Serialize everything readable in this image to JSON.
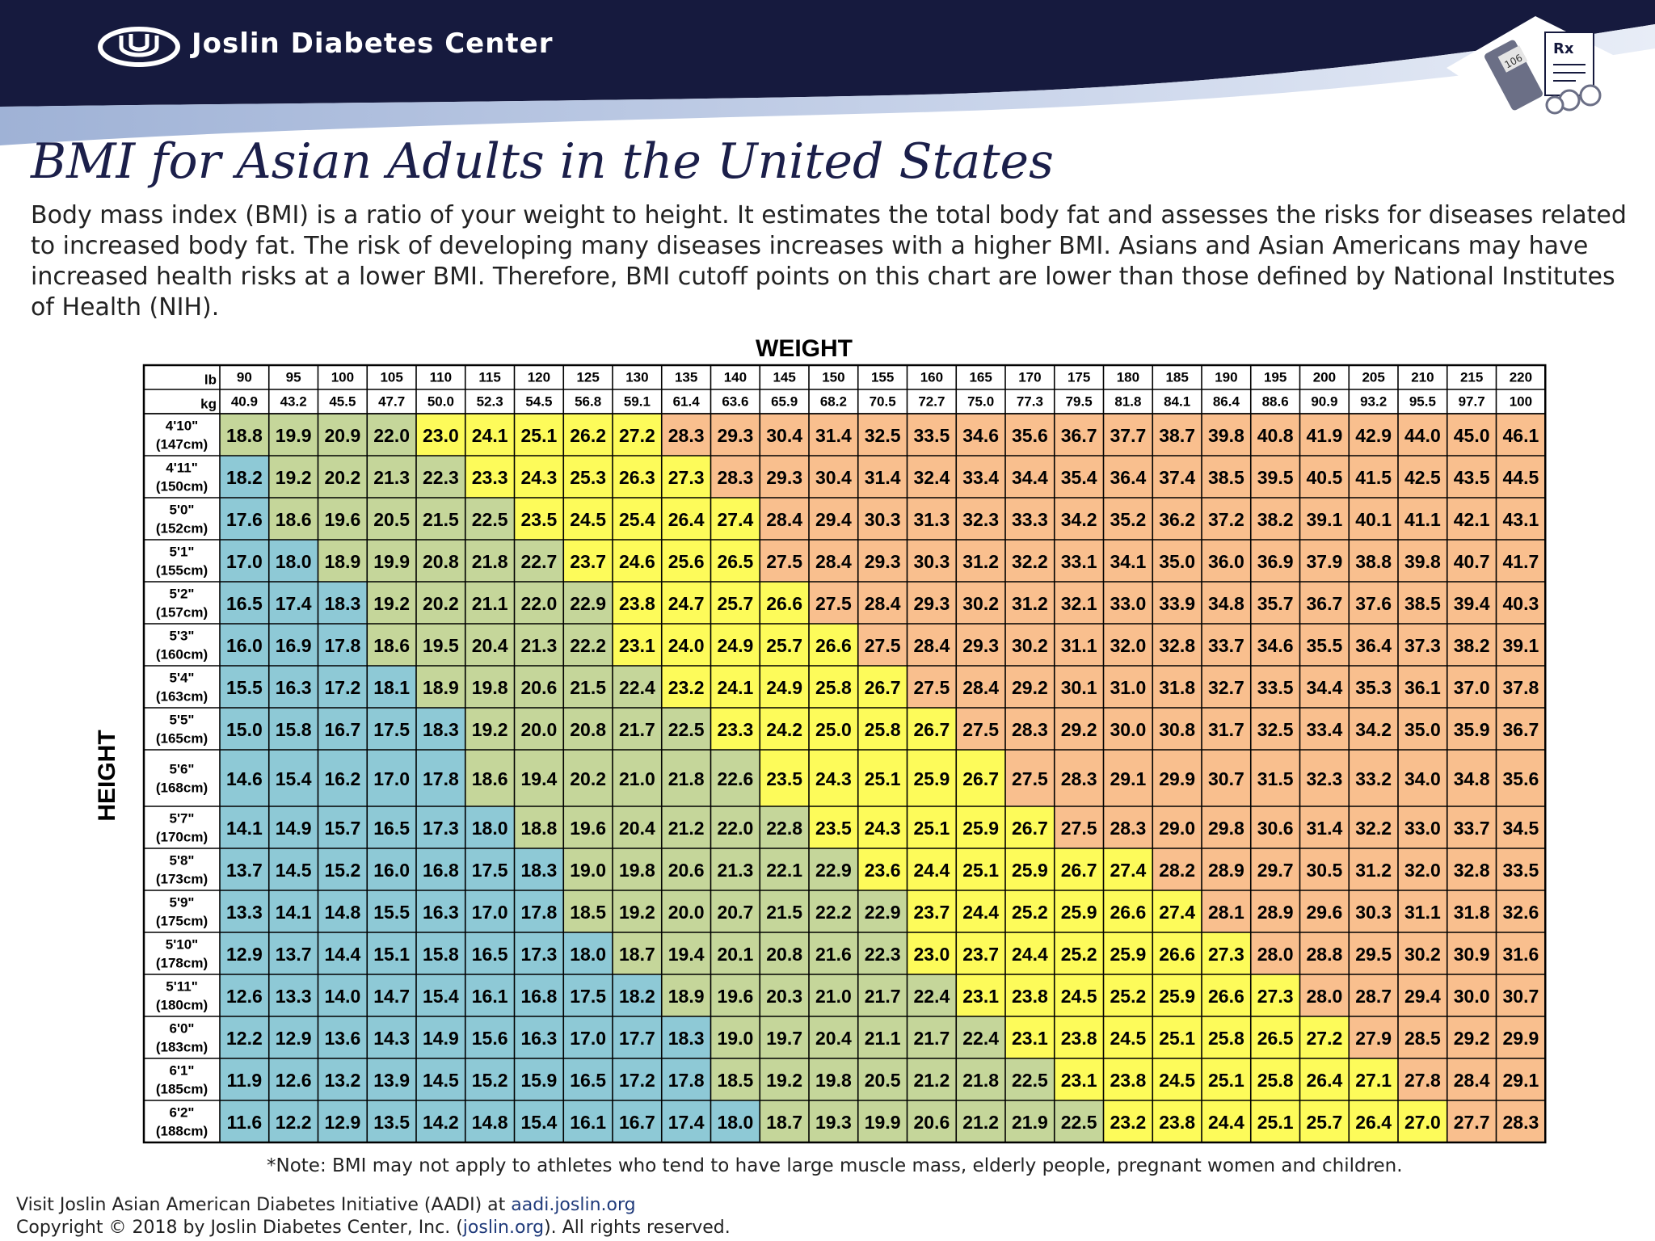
{
  "header": {
    "organization": "Joslin Diabetes Center",
    "device_label": "106",
    "rx_label": "Rx"
  },
  "title": "BMI for Asian Adults in the United States",
  "intro": "Body mass index (BMI) is a ratio of your weight to height. It estimates the total body fat and assesses the risks for diseases related to increased body fat. The risk of developing many diseases increases with a higher BMI. Asians and Asian Americans may have increased health risks at a lower BMI. Therefore, BMI cutoff points on this chart are lower than those defined by National Institutes of Health (NIH).",
  "colors": {
    "header_navy": "#161a3e",
    "underweight": "#8ec9d6",
    "healthy": "#c5d69a",
    "overweight": "#fdfb5a",
    "obese": "#f9bf8e"
  },
  "chart_data": {
    "type": "table",
    "x_title": "WEIGHT",
    "y_title": "HEIGHT",
    "unit_lb": "lb",
    "unit_kg": "kg",
    "weights_lb": [
      "90",
      "95",
      "100",
      "105",
      "110",
      "115",
      "120",
      "125",
      "130",
      "135",
      "140",
      "145",
      "150",
      "155",
      "160",
      "165",
      "170",
      "175",
      "180",
      "185",
      "190",
      "195",
      "200",
      "205",
      "210",
      "215",
      "220"
    ],
    "weights_kg": [
      "40.9",
      "43.2",
      "45.5",
      "47.7",
      "50.0",
      "52.3",
      "54.5",
      "56.8",
      "59.1",
      "61.4",
      "63.6",
      "65.9",
      "68.2",
      "70.5",
      "72.7",
      "75.0",
      "77.3",
      "79.5",
      "81.8",
      "84.1",
      "86.4",
      "88.6",
      "90.9",
      "93.2",
      "95.5",
      "97.7",
      "100"
    ],
    "heights_ft": [
      "4'10\"",
      "4'11\"",
      "5'0\"",
      "5'1\"",
      "5'2\"",
      "5'3\"",
      "5'4\"",
      "5'5\"",
      "5'6\"",
      "5'7\"",
      "5'8\"",
      "5'9\"",
      "5'10\"",
      "5'11\"",
      "6'0\"",
      "6'1\"",
      "6'2\""
    ],
    "heights_cm": [
      "(147cm)",
      "(150cm)",
      "(152cm)",
      "(155cm)",
      "(157cm)",
      "(160cm)",
      "(163cm)",
      "(165cm)",
      "(168cm)",
      "(170cm)",
      "(173cm)",
      "(175cm)",
      "(178cm)",
      "(180cm)",
      "(183cm)",
      "(185cm)",
      "(188cm)"
    ],
    "bmi": [
      [
        "18.8",
        "19.9",
        "20.9",
        "22.0",
        "23.0",
        "24.1",
        "25.1",
        "26.2",
        "27.2",
        "28.3",
        "29.3",
        "30.4",
        "31.4",
        "32.5",
        "33.5",
        "34.6",
        "35.6",
        "36.7",
        "37.7",
        "38.7",
        "39.8",
        "40.8",
        "41.9",
        "42.9",
        "44.0",
        "45.0",
        "46.1"
      ],
      [
        "18.2",
        "19.2",
        "20.2",
        "21.3",
        "22.3",
        "23.3",
        "24.3",
        "25.3",
        "26.3",
        "27.3",
        "28.3",
        "29.3",
        "30.4",
        "31.4",
        "32.4",
        "33.4",
        "34.4",
        "35.4",
        "36.4",
        "37.4",
        "38.5",
        "39.5",
        "40.5",
        "41.5",
        "42.5",
        "43.5",
        "44.5"
      ],
      [
        "17.6",
        "18.6",
        "19.6",
        "20.5",
        "21.5",
        "22.5",
        "23.5",
        "24.5",
        "25.4",
        "26.4",
        "27.4",
        "28.4",
        "29.4",
        "30.3",
        "31.3",
        "32.3",
        "33.3",
        "34.2",
        "35.2",
        "36.2",
        "37.2",
        "38.2",
        "39.1",
        "40.1",
        "41.1",
        "42.1",
        "43.1"
      ],
      [
        "17.0",
        "18.0",
        "18.9",
        "19.9",
        "20.8",
        "21.8",
        "22.7",
        "23.7",
        "24.6",
        "25.6",
        "26.5",
        "27.5",
        "28.4",
        "29.3",
        "30.3",
        "31.2",
        "32.2",
        "33.1",
        "34.1",
        "35.0",
        "36.0",
        "36.9",
        "37.9",
        "38.8",
        "39.8",
        "40.7",
        "41.7"
      ],
      [
        "16.5",
        "17.4",
        "18.3",
        "19.2",
        "20.2",
        "21.1",
        "22.0",
        "22.9",
        "23.8",
        "24.7",
        "25.7",
        "26.6",
        "27.5",
        "28.4",
        "29.3",
        "30.2",
        "31.2",
        "32.1",
        "33.0",
        "33.9",
        "34.8",
        "35.7",
        "36.7",
        "37.6",
        "38.5",
        "39.4",
        "40.3"
      ],
      [
        "16.0",
        "16.9",
        "17.8",
        "18.6",
        "19.5",
        "20.4",
        "21.3",
        "22.2",
        "23.1",
        "24.0",
        "24.9",
        "25.7",
        "26.6",
        "27.5",
        "28.4",
        "29.3",
        "30.2",
        "31.1",
        "32.0",
        "32.8",
        "33.7",
        "34.6",
        "35.5",
        "36.4",
        "37.3",
        "38.2",
        "39.1"
      ],
      [
        "15.5",
        "16.3",
        "17.2",
        "18.1",
        "18.9",
        "19.8",
        "20.6",
        "21.5",
        "22.4",
        "23.2",
        "24.1",
        "24.9",
        "25.8",
        "26.7",
        "27.5",
        "28.4",
        "29.2",
        "30.1",
        "31.0",
        "31.8",
        "32.7",
        "33.5",
        "34.4",
        "35.3",
        "36.1",
        "37.0",
        "37.8"
      ],
      [
        "15.0",
        "15.8",
        "16.7",
        "17.5",
        "18.3",
        "19.2",
        "20.0",
        "20.8",
        "21.7",
        "22.5",
        "23.3",
        "24.2",
        "25.0",
        "25.8",
        "26.7",
        "27.5",
        "28.3",
        "29.2",
        "30.0",
        "30.8",
        "31.7",
        "32.5",
        "33.4",
        "34.2",
        "35.0",
        "35.9",
        "36.7"
      ],
      [
        "14.6",
        "15.4",
        "16.2",
        "17.0",
        "17.8",
        "18.6",
        "19.4",
        "20.2",
        "21.0",
        "21.8",
        "22.6",
        "23.5",
        "24.3",
        "25.1",
        "25.9",
        "26.7",
        "27.5",
        "28.3",
        "29.1",
        "29.9",
        "30.7",
        "31.5",
        "32.3",
        "33.2",
        "34.0",
        "34.8",
        "35.6"
      ],
      [
        "14.1",
        "14.9",
        "15.7",
        "16.5",
        "17.3",
        "18.0",
        "18.8",
        "19.6",
        "20.4",
        "21.2",
        "22.0",
        "22.8",
        "23.5",
        "24.3",
        "25.1",
        "25.9",
        "26.7",
        "27.5",
        "28.3",
        "29.0",
        "29.8",
        "30.6",
        "31.4",
        "32.2",
        "33.0",
        "33.7",
        "34.5"
      ],
      [
        "13.7",
        "14.5",
        "15.2",
        "16.0",
        "16.8",
        "17.5",
        "18.3",
        "19.0",
        "19.8",
        "20.6",
        "21.3",
        "22.1",
        "22.9",
        "23.6",
        "24.4",
        "25.1",
        "25.9",
        "26.7",
        "27.4",
        "28.2",
        "28.9",
        "29.7",
        "30.5",
        "31.2",
        "32.0",
        "32.8",
        "33.5"
      ],
      [
        "13.3",
        "14.1",
        "14.8",
        "15.5",
        "16.3",
        "17.0",
        "17.8",
        "18.5",
        "19.2",
        "20.0",
        "20.7",
        "21.5",
        "22.2",
        "22.9",
        "23.7",
        "24.4",
        "25.2",
        "25.9",
        "26.6",
        "27.4",
        "28.1",
        "28.9",
        "29.6",
        "30.3",
        "31.1",
        "31.8",
        "32.6"
      ],
      [
        "12.9",
        "13.7",
        "14.4",
        "15.1",
        "15.8",
        "16.5",
        "17.3",
        "18.0",
        "18.7",
        "19.4",
        "20.1",
        "20.8",
        "21.6",
        "22.3",
        "23.0",
        "23.7",
        "24.4",
        "25.2",
        "25.9",
        "26.6",
        "27.3",
        "28.0",
        "28.8",
        "29.5",
        "30.2",
        "30.9",
        "31.6"
      ],
      [
        "12.6",
        "13.3",
        "14.0",
        "14.7",
        "15.4",
        "16.1",
        "16.8",
        "17.5",
        "18.2",
        "18.9",
        "19.6",
        "20.3",
        "21.0",
        "21.7",
        "22.4",
        "23.1",
        "23.8",
        "24.5",
        "25.2",
        "25.9",
        "26.6",
        "27.3",
        "28.0",
        "28.7",
        "29.4",
        "30.0",
        "30.7"
      ],
      [
        "12.2",
        "12.9",
        "13.6",
        "14.3",
        "14.9",
        "15.6",
        "16.3",
        "17.0",
        "17.7",
        "18.3",
        "19.0",
        "19.7",
        "20.4",
        "21.1",
        "21.7",
        "22.4",
        "23.1",
        "23.8",
        "24.5",
        "25.1",
        "25.8",
        "26.5",
        "27.2",
        "27.9",
        "28.5",
        "29.2",
        "29.9"
      ],
      [
        "11.9",
        "12.6",
        "13.2",
        "13.9",
        "14.5",
        "15.2",
        "15.9",
        "16.5",
        "17.2",
        "17.8",
        "18.5",
        "19.2",
        "19.8",
        "20.5",
        "21.2",
        "21.8",
        "22.5",
        "23.1",
        "23.8",
        "24.5",
        "25.1",
        "25.8",
        "26.4",
        "27.1",
        "27.8",
        "28.4",
        "29.1"
      ],
      [
        "11.6",
        "12.2",
        "12.9",
        "13.5",
        "14.2",
        "14.8",
        "15.4",
        "16.1",
        "16.7",
        "17.4",
        "18.0",
        "18.7",
        "19.3",
        "19.9",
        "20.6",
        "21.2",
        "21.9",
        "22.5",
        "23.2",
        "23.8",
        "24.4",
        "25.1",
        "25.7",
        "26.4",
        "27.0",
        "27.7",
        "28.3"
      ]
    ]
  },
  "note": "*Note:  BMI may not apply to athletes who tend to have large muscle mass, elderly people, pregnant women and children.",
  "footer": {
    "visit_text": "Visit Joslin Asian American Diabetes Initiative (AADI) at ",
    "visit_link": "aadi.joslin.org",
    "copyright_prefix": "Copyright © 2018 by Joslin Diabetes Center, Inc. (",
    "copyright_link": "joslin.org",
    "copyright_suffix": "). All rights reserved."
  }
}
